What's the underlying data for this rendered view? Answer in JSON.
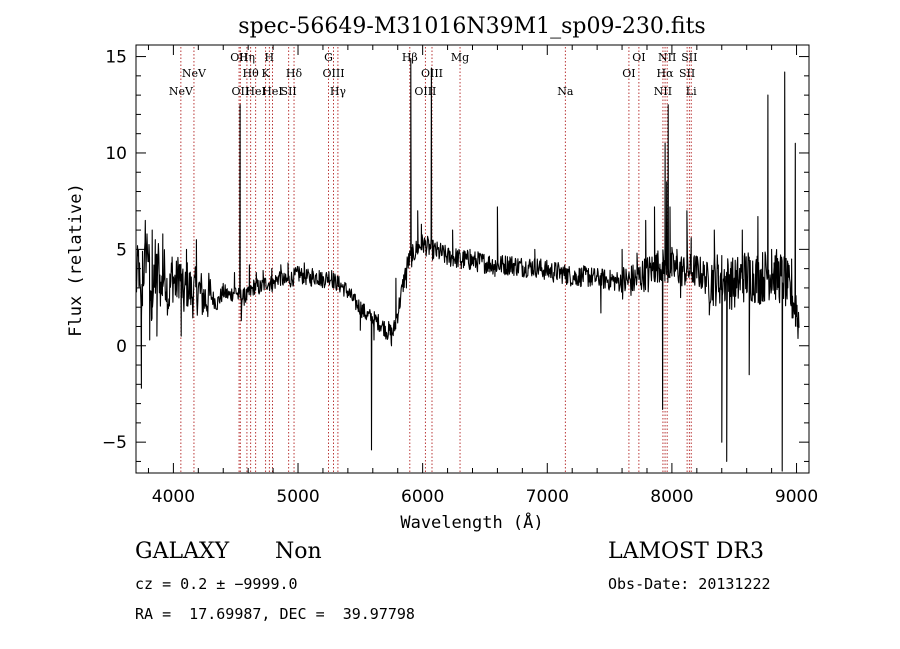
{
  "chart_data": {
    "type": "line",
    "title": "spec-56649-M31016N39M1_sp09-230.fits",
    "xlabel": "Wavelength (Å)",
    "ylabel": "Flux (relative)",
    "xlim": [
      3700,
      9100
    ],
    "ylim": [
      -6.6,
      15.6
    ],
    "x_ticks": [
      4000,
      5000,
      6000,
      7000,
      8000,
      9000
    ],
    "x_tick_labels": [
      "4000",
      "5000",
      "6000",
      "7000",
      "8000",
      "9000"
    ],
    "y_ticks": [
      -5,
      0,
      5,
      10,
      15
    ],
    "y_tick_labels": [
      "−5",
      "0",
      "5",
      "10",
      "15"
    ],
    "series": [
      {
        "name": "spectrum",
        "color": "#000000",
        "anchors": [
          [
            3700,
            3.0
          ],
          [
            3720,
            4.5
          ],
          [
            3740,
            1.5
          ],
          [
            3760,
            3.8
          ],
          [
            3790,
            5.3
          ],
          [
            3800,
            4.7
          ],
          [
            3820,
            2.0
          ],
          [
            3850,
            3.2
          ],
          [
            3880,
            4.4
          ],
          [
            3900,
            2.8
          ],
          [
            3930,
            3.9
          ],
          [
            3960,
            2.5
          ],
          [
            3990,
            3.6
          ],
          [
            4020,
            3.1
          ],
          [
            4050,
            3.9
          ],
          [
            4080,
            2.5
          ],
          [
            4110,
            3.2
          ],
          [
            4150,
            2.7
          ],
          [
            4200,
            2.9
          ],
          [
            4250,
            2.4
          ],
          [
            4300,
            2.6
          ],
          [
            4350,
            2.2
          ],
          [
            4400,
            2.8
          ],
          [
            4450,
            2.6
          ],
          [
            4500,
            2.9
          ],
          [
            4520,
            2.6
          ],
          [
            4560,
            2.5
          ],
          [
            4600,
            2.6
          ],
          [
            4650,
            3.1
          ],
          [
            4700,
            3.0
          ],
          [
            4750,
            3.3
          ],
          [
            4800,
            3.2
          ],
          [
            4850,
            3.6
          ],
          [
            4900,
            3.3
          ],
          [
            4950,
            3.5
          ],
          [
            5000,
            3.7
          ],
          [
            5050,
            3.6
          ],
          [
            5100,
            3.5
          ],
          [
            5150,
            3.6
          ],
          [
            5200,
            3.4
          ],
          [
            5250,
            3.6
          ],
          [
            5300,
            3.3
          ],
          [
            5350,
            3.1
          ],
          [
            5400,
            2.8
          ],
          [
            5450,
            2.3
          ],
          [
            5500,
            2.0
          ],
          [
            5550,
            1.6
          ],
          [
            5600,
            1.4
          ],
          [
            5650,
            1.2
          ],
          [
            5700,
            0.9
          ],
          [
            5750,
            0.6
          ],
          [
            5770,
            0.8
          ],
          [
            5800,
            1.7
          ],
          [
            5850,
            3.4
          ],
          [
            5880,
            4.3
          ],
          [
            5920,
            4.7
          ],
          [
            5950,
            5.0
          ],
          [
            6000,
            5.3
          ],
          [
            6050,
            5.1
          ],
          [
            6100,
            4.9
          ],
          [
            6150,
            4.8
          ],
          [
            6200,
            4.6
          ],
          [
            6250,
            4.6
          ],
          [
            6300,
            4.5
          ],
          [
            6400,
            4.4
          ],
          [
            6500,
            4.3
          ],
          [
            6600,
            4.2
          ],
          [
            6700,
            4.2
          ],
          [
            6800,
            4.1
          ],
          [
            6900,
            4.1
          ],
          [
            7000,
            3.9
          ],
          [
            7100,
            3.8
          ],
          [
            7200,
            3.6
          ],
          [
            7300,
            3.6
          ],
          [
            7400,
            3.5
          ],
          [
            7500,
            3.4
          ],
          [
            7600,
            3.3
          ],
          [
            7700,
            3.4
          ],
          [
            7800,
            3.8
          ],
          [
            7900,
            4.2
          ],
          [
            8000,
            4.0
          ],
          [
            8100,
            3.9
          ],
          [
            8200,
            3.9
          ],
          [
            8300,
            3.4
          ],
          [
            8400,
            3.5
          ],
          [
            8500,
            3.2
          ],
          [
            8600,
            3.7
          ],
          [
            8700,
            3.5
          ],
          [
            8800,
            3.8
          ],
          [
            8900,
            3.4
          ],
          [
            9000,
            2.0
          ],
          [
            9020,
            1.2
          ]
        ],
        "features": [
          [
            3743,
            -2.2
          ],
          [
            3752,
            4.9
          ],
          [
            3775,
            6.5
          ],
          [
            3810,
            0.3
          ],
          [
            3830,
            6.0
          ],
          [
            3855,
            5.5
          ],
          [
            3868,
            0.5
          ],
          [
            3915,
            5.8
          ],
          [
            3990,
            4.6
          ],
          [
            4063,
            0.5
          ],
          [
            4105,
            5.0
          ],
          [
            4135,
            3.4
          ],
          [
            4185,
            5.5
          ],
          [
            4490,
            3.8
          ],
          [
            4535,
            12.5
          ],
          [
            4545,
            1.3
          ],
          [
            4570,
            3.0
          ],
          [
            4610,
            4.2
          ],
          [
            4665,
            3.8
          ],
          [
            4720,
            3.9
          ],
          [
            4790,
            4.0
          ],
          [
            4862,
            4.2
          ],
          [
            4920,
            4.3
          ],
          [
            5008,
            4.1
          ],
          [
            5050,
            4.3
          ],
          [
            5115,
            4.0
          ],
          [
            5170,
            3.9
          ],
          [
            5270,
            3.9
          ],
          [
            5500,
            0.8
          ],
          [
            5590,
            -5.4
          ],
          [
            5610,
            0.3
          ],
          [
            5750,
            0.0
          ],
          [
            5785,
            3.5
          ],
          [
            5815,
            2.4
          ],
          [
            5870,
            3.0
          ],
          [
            5905,
            14.9
          ],
          [
            5918,
            4.4
          ],
          [
            5960,
            7.0
          ],
          [
            5990,
            6.3
          ],
          [
            6070,
            14.4
          ],
          [
            6082,
            4.9
          ],
          [
            6160,
            5.0
          ],
          [
            6240,
            6.0
          ],
          [
            6310,
            4.0
          ],
          [
            6380,
            5.0
          ],
          [
            6450,
            4.8
          ],
          [
            6580,
            3.6
          ],
          [
            6600,
            7.2
          ],
          [
            6700,
            4.6
          ],
          [
            6800,
            3.6
          ],
          [
            6900,
            5.0
          ],
          [
            7050,
            3.3
          ],
          [
            7150,
            4.0
          ],
          [
            7230,
            3.2
          ],
          [
            7330,
            4.0
          ],
          [
            7430,
            1.7
          ],
          [
            7520,
            3.7
          ],
          [
            7600,
            5.0
          ],
          [
            7680,
            3.0
          ],
          [
            7720,
            4.8
          ],
          [
            7790,
            6.5
          ],
          [
            7810,
            2.8
          ],
          [
            7860,
            7.2
          ],
          [
            7890,
            4.5
          ],
          [
            7925,
            -3.3
          ],
          [
            7945,
            10.5
          ],
          [
            7958,
            8.5
          ],
          [
            7970,
            12.5
          ],
          [
            7985,
            7.2
          ],
          [
            8000,
            5.1
          ],
          [
            8040,
            5.0
          ],
          [
            8070,
            2.5
          ],
          [
            8100,
            4.0
          ],
          [
            8120,
            7.0
          ],
          [
            8155,
            5.6
          ],
          [
            8180,
            3.5
          ],
          [
            8250,
            4.0
          ],
          [
            8300,
            1.6
          ],
          [
            8340,
            6.0
          ],
          [
            8375,
            2.8
          ],
          [
            8400,
            -5.0
          ],
          [
            8440,
            -6.0
          ],
          [
            8470,
            4.0
          ],
          [
            8520,
            3.0
          ],
          [
            8565,
            6.0
          ],
          [
            8620,
            -1.5
          ],
          [
            8690,
            6.7
          ],
          [
            8730,
            3.0
          ],
          [
            8770,
            13.0
          ],
          [
            8800,
            5.0
          ],
          [
            8820,
            4.3
          ],
          [
            8885,
            -6.5
          ],
          [
            8905,
            14.2
          ],
          [
            8930,
            3.0
          ],
          [
            8960,
            4.5
          ],
          [
            8990,
            10.5
          ],
          [
            9005,
            1.0
          ]
        ]
      }
    ],
    "emission_lines": [
      {
        "name": "NeV",
        "wavelength": 4060,
        "label_row": 2
      },
      {
        "name": "NeV",
        "wavelength": 4165,
        "label_row": 1
      },
      {
        "name": "OII",
        "wavelength": 4527,
        "label_row": 0
      },
      {
        "name": "OII",
        "wavelength": 4537,
        "label_row": 2
      },
      {
        "name": "Hη",
        "wavelength": 4590,
        "label_row": 0
      },
      {
        "name": "Hθ",
        "wavelength": 4620,
        "label_row": 1
      },
      {
        "name": "HeI",
        "wavelength": 4660,
        "label_row": 2
      },
      {
        "name": "H",
        "wavelength": 4770,
        "label_row": 0
      },
      {
        "name": "K",
        "wavelength": 4740,
        "label_row": 1
      },
      {
        "name": "HeI",
        "wavelength": 4795,
        "label_row": 2
      },
      {
        "name": "Hδ",
        "wavelength": 4968,
        "label_row": 1
      },
      {
        "name": "SII",
        "wavelength": 4925,
        "label_row": 2
      },
      {
        "name": "G",
        "wavelength": 5245,
        "label_row": 0
      },
      {
        "name": "OIII",
        "wavelength": 5285,
        "label_row": 1
      },
      {
        "name": "Hγ",
        "wavelength": 5320,
        "label_row": 2
      },
      {
        "name": "Hβ",
        "wavelength": 5897,
        "label_row": 0
      },
      {
        "name": "OIII",
        "wavelength": 6022,
        "label_row": 2
      },
      {
        "name": "OIII",
        "wavelength": 6075,
        "label_row": 1
      },
      {
        "name": "Mg",
        "wavelength": 6300,
        "label_row": 0
      },
      {
        "name": "Na",
        "wavelength": 7145,
        "label_row": 2
      },
      {
        "name": "OI",
        "wavelength": 7655,
        "label_row": 1
      },
      {
        "name": "OI",
        "wavelength": 7735,
        "label_row": 0
      },
      {
        "name": "NII",
        "wavelength": 7928,
        "label_row": 2
      },
      {
        "name": "NII",
        "wavelength": 7962,
        "label_row": 0
      },
      {
        "name": "Hα",
        "wavelength": 7945,
        "label_row": 1
      },
      {
        "name": "SII",
        "wavelength": 8122,
        "label_row": 1
      },
      {
        "name": "SII",
        "wavelength": 8140,
        "label_row": 0
      },
      {
        "name": "Li",
        "wavelength": 8155,
        "label_row": 2
      }
    ],
    "emission_line_color": "#b22222"
  },
  "info": {
    "object_class": "GALAXY",
    "subclass": "Non",
    "survey": "LAMOST DR3",
    "redshift_text": "cz = 0.2 ± −9999.0",
    "obs_date_text": "Obs-Date: 20131222",
    "coords_text": "RA =  17.69987, DEC =  39.97798"
  }
}
